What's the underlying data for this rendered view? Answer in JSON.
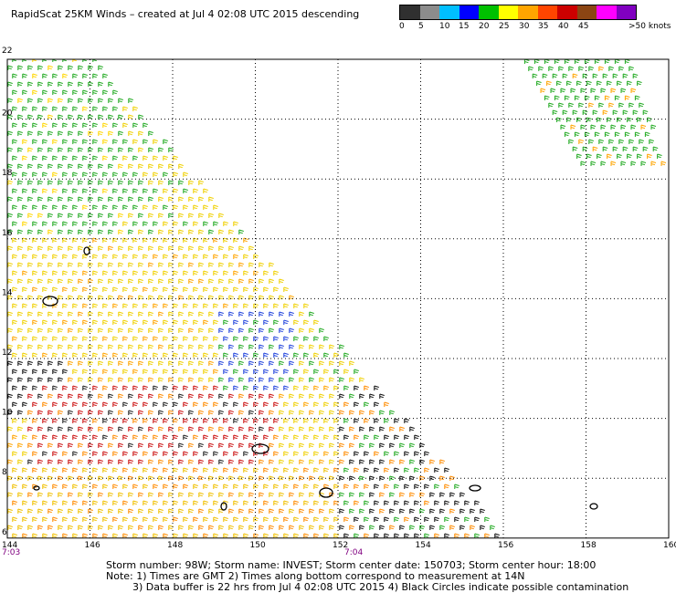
{
  "title": "RapidScat 25KM Winds – created at Jul  4 02:08 UTC 2015 descending",
  "legend": {
    "colors": [
      "#303030",
      "#8c8c8c",
      "#00bfff",
      "#0000ff",
      "#00c000",
      "#ffff00",
      "#ffa500",
      "#ff4500",
      "#cc0000",
      "#8b4513",
      "#ff00ff",
      "#8000c0"
    ],
    "labels": [
      "0",
      "5",
      "10",
      "15",
      "20",
      "25",
      "30",
      "35",
      "40",
      "45",
      ">50 knots"
    ]
  },
  "map": {
    "lat_labels": [
      "22",
      "20",
      "18",
      "16",
      "14",
      "12",
      "10",
      "8",
      "6"
    ],
    "lon_labels": [
      "144",
      "146",
      "148",
      "150",
      "152",
      "154",
      "156",
      "158",
      "160"
    ],
    "time_labels": [
      "7:03",
      "7:04"
    ],
    "lon_range": [
      144,
      160
    ],
    "lat_range": [
      6,
      22
    ]
  },
  "footer": {
    "line1": "Storm number: 98W;   Storm name: INVEST;   Storm center date: 150703;   Storm center hour: 18:00",
    "line2": "Note: 1) Times are GMT  2) Times along bottom correspond to measurement at 14N",
    "line3": "3) Data buffer is 22 hrs from Jul  4 02:08 UTC 2015   4) Black Circles indicate possible contamination"
  }
}
